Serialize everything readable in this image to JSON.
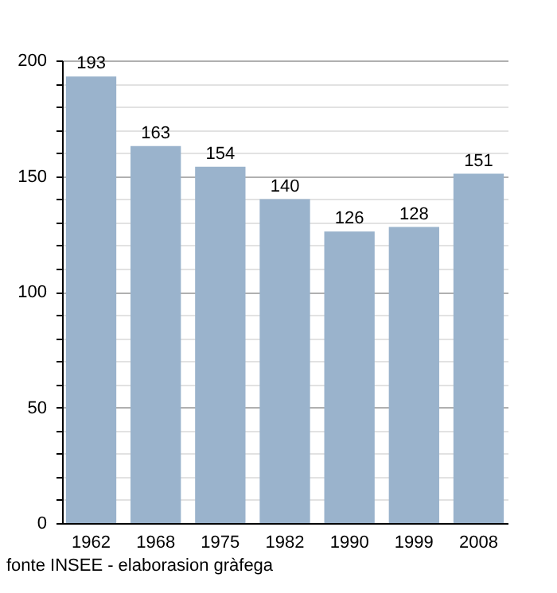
{
  "chart_data": {
    "type": "bar",
    "categories": [
      "1962",
      "1968",
      "1975",
      "1982",
      "1990",
      "1999",
      "2008"
    ],
    "values": [
      193,
      163,
      154,
      140,
      126,
      128,
      151
    ],
    "color": "#9ab3cc",
    "data_labels": true,
    "grid": "y",
    "ylim": [
      0,
      200
    ],
    "yticks": [
      0,
      {
        "value": 10,
        "label": null
      },
      {
        "value": 20,
        "label": null
      },
      {
        "value": 30,
        "label": null
      },
      {
        "value": 40,
        "label": null
      },
      50,
      {
        "value": 60,
        "label": null
      },
      {
        "value": 70,
        "label": null
      },
      {
        "value": 80,
        "label": null
      },
      {
        "value": 90,
        "label": null
      },
      100,
      {
        "value": 110,
        "label": null
      },
      {
        "value": 120,
        "label": null
      },
      {
        "value": 130,
        "label": null
      },
      {
        "value": 140,
        "label": null
      },
      150,
      {
        "value": 160,
        "label": null
      },
      {
        "value": 170,
        "label": null
      },
      {
        "value": 180,
        "label": null
      },
      {
        "value": 190,
        "label": null
      },
      200
    ],
    "annotations": [
      "fonte INSEE - elaborasion gràfega"
    ]
  }
}
